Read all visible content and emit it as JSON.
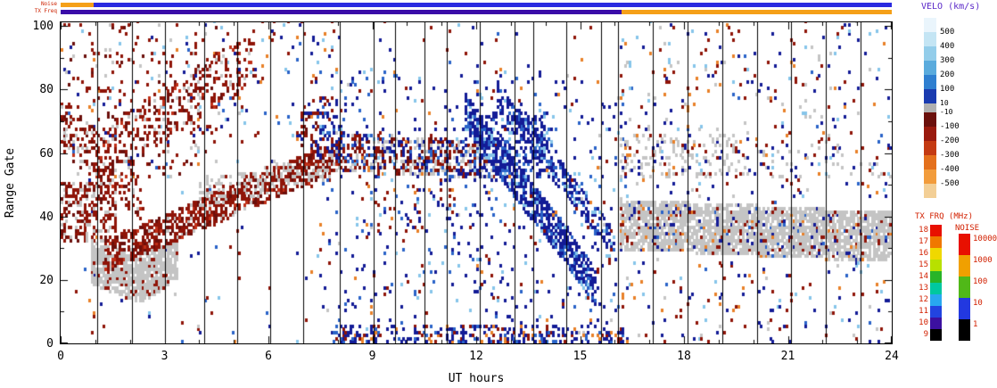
{
  "chart_data": {
    "type": "heatmap",
    "xlabel": "UT hours",
    "ylabel": "Range Gate",
    "xlim": [
      0,
      24
    ],
    "ylim": [
      0,
      101
    ],
    "x_ticks": [
      0,
      3,
      6,
      9,
      12,
      15,
      18,
      21,
      24
    ],
    "y_ticks": [
      0,
      20,
      40,
      60,
      80,
      100
    ],
    "grid": false,
    "vertical_lines": [
      1.05,
      2.05,
      3.0,
      4.15,
      5.1,
      6.05,
      7.0,
      8.05,
      9.05,
      9.65,
      10.5,
      11.15,
      12.1,
      13.1,
      13.65,
      14.6,
      15.6,
      16.1,
      17.1,
      18.1,
      19.1,
      20.1,
      21.1,
      22.1,
      23.1
    ],
    "top_bars": {
      "noise_label": "Noise",
      "txfreq_label": "TX Freq",
      "noise_segments": [
        {
          "from": 0,
          "to": 0.95,
          "color": "#f5a018"
        },
        {
          "from": 0.95,
          "to": 24,
          "color": "#2a2ae0"
        }
      ],
      "txfreq_segments": [
        {
          "from": 0,
          "to": 16.2,
          "color": "#3a0ca8"
        },
        {
          "from": 16.2,
          "to": 24,
          "color": "#f5a018"
        }
      ]
    },
    "colorbars": {
      "velocity": {
        "title": "VELO (km/s)",
        "segments": [
          {
            "color": "#eaf5fc"
          },
          {
            "color": "#c4e5f4",
            "label": "500"
          },
          {
            "color": "#93cdea",
            "label": "400"
          },
          {
            "color": "#5aabdd",
            "label": "300"
          },
          {
            "color": "#2f7fd0",
            "label": "200"
          },
          {
            "color": "#1a3bb0",
            "label": "100"
          },
          {
            "color": "#b0b0b0",
            "label": "10",
            "small": true,
            "h": 10
          },
          {
            "color": "#6b100c",
            "label": "-10",
            "small": true
          },
          {
            "color": "#9a1a0e",
            "label": "-100"
          },
          {
            "color": "#c43a12",
            "label": "-200"
          },
          {
            "color": "#e4701c",
            "label": "-300"
          },
          {
            "color": "#f29c3c",
            "label": "-400"
          },
          {
            "color": "#f3cf96",
            "label": "-500"
          }
        ]
      },
      "tx_frq": {
        "title": "TX FRQ (MHz)",
        "segments": [
          {
            "color": "#e81000",
            "label": "18"
          },
          {
            "color": "#f07800",
            "label": "17"
          },
          {
            "color": "#f0d800",
            "label": "16"
          },
          {
            "color": "#b8e000",
            "label": "15"
          },
          {
            "color": "#28b428",
            "label": "14"
          },
          {
            "color": "#00c8a0",
            "label": "13"
          },
          {
            "color": "#28a8f0",
            "label": "12"
          },
          {
            "color": "#2244e0",
            "label": "11"
          },
          {
            "color": "#3c10a0",
            "label": "10"
          },
          {
            "color": "#000000",
            "label": "9"
          }
        ]
      },
      "noise": {
        "title": "NOISE",
        "segments": [
          {
            "color": "#e81000",
            "label": "10000"
          },
          {
            "color": "#f0a000",
            "label": "1000"
          },
          {
            "color": "#50b818",
            "label": "100"
          },
          {
            "color": "#2238e0",
            "label": "10"
          },
          {
            "color": "#000000",
            "label": "1"
          }
        ]
      }
    },
    "palette": {
      "darkred": "#8f1408",
      "maroon": "#6b0f0b",
      "red": "#c03018",
      "orange": "#e88028",
      "lightblue": "#86c5ea",
      "blue": "#2a63c8",
      "navy": "#131b96",
      "gray": "#c4c4c4"
    },
    "features": [
      {
        "kind": "box",
        "t0": 0,
        "t1": 24,
        "glo": 0,
        "ghi": 101,
        "d": 0.012,
        "pal": [
          [
            "darkred",
            0.28
          ],
          [
            "navy",
            0.27
          ],
          [
            "blue",
            0.12
          ],
          [
            "lightblue",
            0.12
          ],
          [
            "orange",
            0.11
          ],
          [
            "gray",
            0.1
          ]
        ]
      },
      {
        "kind": "box",
        "t0": 0,
        "t1": 4.6,
        "glo": 52,
        "ghi": 100,
        "d": 0.09,
        "pal": [
          [
            "darkred",
            0.5
          ],
          [
            "maroon",
            0.18
          ],
          [
            "gray",
            0.12
          ],
          [
            "navy",
            0.08
          ],
          [
            "orange",
            0.06
          ],
          [
            "lightblue",
            0.06
          ]
        ]
      },
      {
        "kind": "diag",
        "t0": 1.0,
        "t1": 5.6,
        "g0": 58,
        "g1": 90,
        "th": 16,
        "d": 0.26,
        "pal": [
          [
            "darkred",
            0.55
          ],
          [
            "maroon",
            0.2
          ],
          [
            "red",
            0.1
          ],
          [
            "gray",
            0.15
          ]
        ]
      },
      {
        "kind": "diag",
        "t0": 0.0,
        "t1": 2.3,
        "g0": 70,
        "g1": 45,
        "th": 14,
        "d": 0.28,
        "pal": [
          [
            "darkred",
            0.55
          ],
          [
            "maroon",
            0.2
          ],
          [
            "gray",
            0.2
          ],
          [
            "red",
            0.05
          ]
        ]
      },
      {
        "kind": "box",
        "t0": 0,
        "t1": 1.6,
        "glo": 32,
        "ghi": 50,
        "d": 0.45,
        "pal": [
          [
            "darkred",
            0.6
          ],
          [
            "maroon",
            0.2
          ],
          [
            "gray",
            0.2
          ]
        ]
      },
      {
        "kind": "diag",
        "t0": 0.9,
        "t1": 2.3,
        "g0": 25,
        "g1": 19,
        "th": 13,
        "d": 0.85,
        "pal": [
          [
            "gray",
            0.9
          ],
          [
            "darkred",
            0.1
          ]
        ]
      },
      {
        "kind": "diag",
        "t0": 2.3,
        "t1": 3.4,
        "g0": 19,
        "g1": 27,
        "th": 13,
        "d": 0.8,
        "pal": [
          [
            "gray",
            0.9
          ],
          [
            "darkred",
            0.1
          ]
        ]
      },
      {
        "kind": "diag",
        "t0": 1.3,
        "t1": 8.2,
        "g0": 27,
        "g1": 60,
        "th": 9,
        "d": 0.62,
        "pal": [
          [
            "darkred",
            0.62
          ],
          [
            "maroon",
            0.22
          ],
          [
            "red",
            0.08
          ],
          [
            "gray",
            0.08
          ]
        ]
      },
      {
        "kind": "diag",
        "t0": 4.0,
        "t1": 8.0,
        "g0": 46,
        "g1": 56,
        "th": 8,
        "d": 0.3,
        "pal": [
          [
            "gray",
            0.7
          ],
          [
            "darkred",
            0.3
          ]
        ]
      },
      {
        "kind": "diag",
        "t0": 8.0,
        "t1": 12.6,
        "g0": 60,
        "g1": 57,
        "th": 11,
        "d": 0.5,
        "pal": [
          [
            "gray",
            0.28
          ],
          [
            "darkred",
            0.3
          ],
          [
            "navy",
            0.22
          ],
          [
            "blue",
            0.1
          ],
          [
            "maroon",
            0.1
          ]
        ]
      },
      {
        "kind": "box",
        "t0": 6.8,
        "t1": 7.4,
        "glo": 55,
        "ghi": 72,
        "d": 0.3,
        "pal": [
          [
            "darkred",
            0.6
          ],
          [
            "maroon",
            0.2
          ],
          [
            "navy",
            0.2
          ]
        ]
      },
      {
        "kind": "box",
        "t0": 7.4,
        "t1": 8.1,
        "glo": 58,
        "ghi": 75,
        "d": 0.28,
        "pal": [
          [
            "navy",
            0.65
          ],
          [
            "blue",
            0.2
          ],
          [
            "darkred",
            0.15
          ]
        ]
      },
      {
        "kind": "diag",
        "t0": 11.7,
        "t1": 15.4,
        "g0": 72,
        "g1": 17,
        "th": 11,
        "d": 0.7,
        "pal": [
          [
            "navy",
            0.72
          ],
          [
            "blue",
            0.18
          ],
          [
            "lightblue",
            0.1
          ]
        ]
      },
      {
        "kind": "diag",
        "t0": 12.6,
        "t1": 16.0,
        "g0": 78,
        "g1": 30,
        "th": 8,
        "d": 0.4,
        "pal": [
          [
            "navy",
            0.7
          ],
          [
            "blue",
            0.2
          ],
          [
            "lightblue",
            0.1
          ]
        ]
      },
      {
        "kind": "box",
        "t0": 12.0,
        "t1": 14.2,
        "glo": 52,
        "ghi": 72,
        "d": 0.3,
        "pal": [
          [
            "navy",
            0.7
          ],
          [
            "blue",
            0.2
          ],
          [
            "lightblue",
            0.1
          ]
        ]
      },
      {
        "kind": "box",
        "t0": 7.5,
        "t1": 16.3,
        "glo": 0,
        "ghi": 85,
        "d": 0.045,
        "pal": [
          [
            "navy",
            0.5
          ],
          [
            "blue",
            0.2
          ],
          [
            "lightblue",
            0.15
          ],
          [
            "darkred",
            0.1
          ],
          [
            "orange",
            0.05
          ]
        ]
      },
      {
        "kind": "box",
        "t0": 7.8,
        "t1": 16.4,
        "glo": 0,
        "ghi": 5,
        "d": 0.32,
        "pal": [
          [
            "navy",
            0.6
          ],
          [
            "blue",
            0.15
          ],
          [
            "darkred",
            0.15
          ],
          [
            "orange",
            0.1
          ]
        ]
      },
      {
        "kind": "box",
        "t0": 8.5,
        "t1": 11.5,
        "glo": 35,
        "ghi": 55,
        "d": 0.05,
        "pal": [
          [
            "darkred",
            0.4
          ],
          [
            "navy",
            0.3
          ],
          [
            "blue",
            0.15
          ],
          [
            "orange",
            0.15
          ]
        ]
      },
      {
        "kind": "box",
        "t0": 4.5,
        "t1": 8.0,
        "glo": 62,
        "ghi": 101,
        "d": 0.045,
        "pal": [
          [
            "darkred",
            0.3
          ],
          [
            "navy",
            0.25
          ],
          [
            "blue",
            0.15
          ],
          [
            "orange",
            0.15
          ],
          [
            "lightblue",
            0.15
          ]
        ]
      },
      {
        "kind": "diag",
        "t0": 16.2,
        "t1": 24,
        "g0": 37,
        "g1": 33,
        "th": 15,
        "d": 0.8,
        "pal": [
          [
            "gray",
            0.85
          ],
          [
            "darkred",
            0.06
          ],
          [
            "navy",
            0.05
          ],
          [
            "blue",
            0.02
          ],
          [
            "orange",
            0.02
          ]
        ]
      },
      {
        "kind": "box",
        "t0": 16.2,
        "t1": 19.5,
        "glo": 52,
        "ghi": 65,
        "d": 0.2,
        "pal": [
          [
            "gray",
            0.78
          ],
          [
            "darkred",
            0.12
          ],
          [
            "navy",
            0.1
          ]
        ]
      },
      {
        "kind": "box",
        "t0": 19.5,
        "t1": 24,
        "glo": 52,
        "ghi": 62,
        "d": 0.08,
        "pal": [
          [
            "gray",
            0.7
          ],
          [
            "darkred",
            0.15
          ],
          [
            "navy",
            0.15
          ]
        ]
      },
      {
        "kind": "box",
        "t0": 16.2,
        "t1": 24,
        "glo": 46,
        "ghi": 101,
        "d": 0.04,
        "pal": [
          [
            "navy",
            0.3
          ],
          [
            "darkred",
            0.28
          ],
          [
            "lightblue",
            0.15
          ],
          [
            "orange",
            0.12
          ],
          [
            "gray",
            0.15
          ]
        ]
      },
      {
        "kind": "box",
        "t0": 16.2,
        "t1": 24,
        "glo": 0,
        "ghi": 26,
        "d": 0.03,
        "pal": [
          [
            "navy",
            0.35
          ],
          [
            "darkred",
            0.3
          ],
          [
            "lightblue",
            0.12
          ],
          [
            "orange",
            0.12
          ],
          [
            "gray",
            0.11
          ]
        ]
      }
    ]
  }
}
